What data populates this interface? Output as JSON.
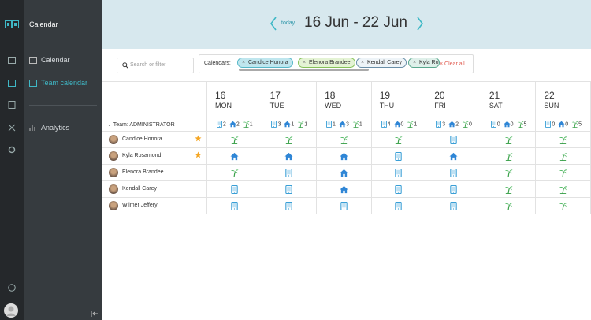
{
  "sidebar": {
    "app_title": "Calendar",
    "menu": [
      "Calendar",
      "Team calendar",
      "Analytics"
    ]
  },
  "header": {
    "today": "today",
    "range": "16 Jun - 22 Jun"
  },
  "filter": {
    "search_placeholder": "Search or filter",
    "calendars_label": "Calendars:",
    "chips": [
      "Candice Honora",
      "Elenora Brandee",
      "Kendall Carey",
      "Kyla Ros"
    ],
    "clear": "Clear all"
  },
  "table": {
    "team": "Team: ADMINISTRATOR",
    "days": [
      {
        "date": 16,
        "weekday": "MON",
        "office": 2,
        "home": 2,
        "vacation": 1
      },
      {
        "date": 17,
        "weekday": "TUE",
        "office": 3,
        "home": 1,
        "vacation": 1
      },
      {
        "date": 18,
        "weekday": "WED",
        "office": 1,
        "home": 3,
        "vacation": 1
      },
      {
        "date": 19,
        "weekday": "THU",
        "office": 4,
        "home": 0,
        "vacation": 1
      },
      {
        "date": 20,
        "weekday": "FRI",
        "office": 3,
        "home": 2,
        "vacation": 0
      },
      {
        "date": 21,
        "weekday": "SAT",
        "office": 0,
        "home": 0,
        "vacation": 5
      },
      {
        "date": 22,
        "weekday": "SUN",
        "office": 0,
        "home": 0,
        "vacation": 5
      }
    ],
    "people": [
      "Candice Honora",
      "Kyla Rosamond",
      "Elenora Brandee",
      "Kendall Carey",
      "Wilmer Jeffery"
    ]
  }
}
